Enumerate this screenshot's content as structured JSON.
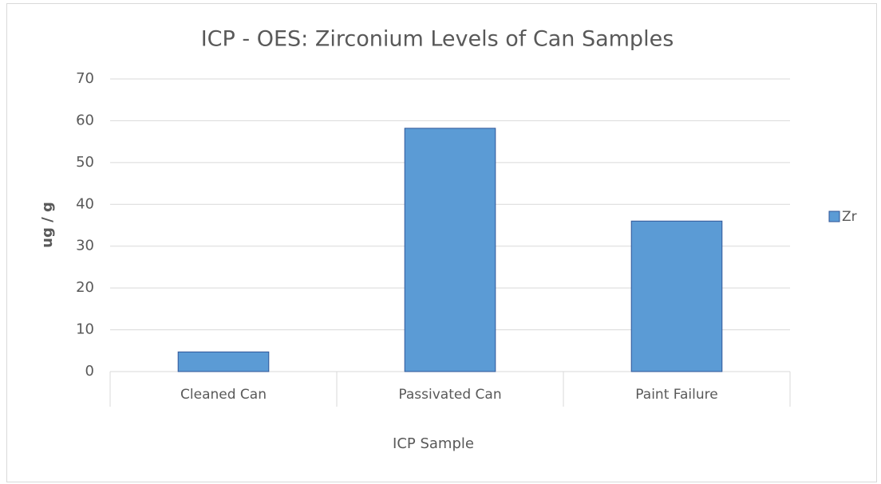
{
  "chart_data": {
    "type": "bar",
    "title": "ICP - OES: Zirconium Levels of Can Samples",
    "x_label": "ICP Sample",
    "y_label": "ug / g",
    "categories": [
      "Cleaned Can",
      "Passivated Can",
      "Paint Failure"
    ],
    "series": [
      {
        "name": "Zr",
        "color": "#5b9bd5",
        "values": [
          4.7,
          58.2,
          36
        ]
      }
    ],
    "ylim": [
      0,
      70
    ],
    "yticks": [
      0,
      10,
      20,
      30,
      40,
      50,
      60,
      70
    ],
    "grid": true,
    "legend": "right"
  }
}
